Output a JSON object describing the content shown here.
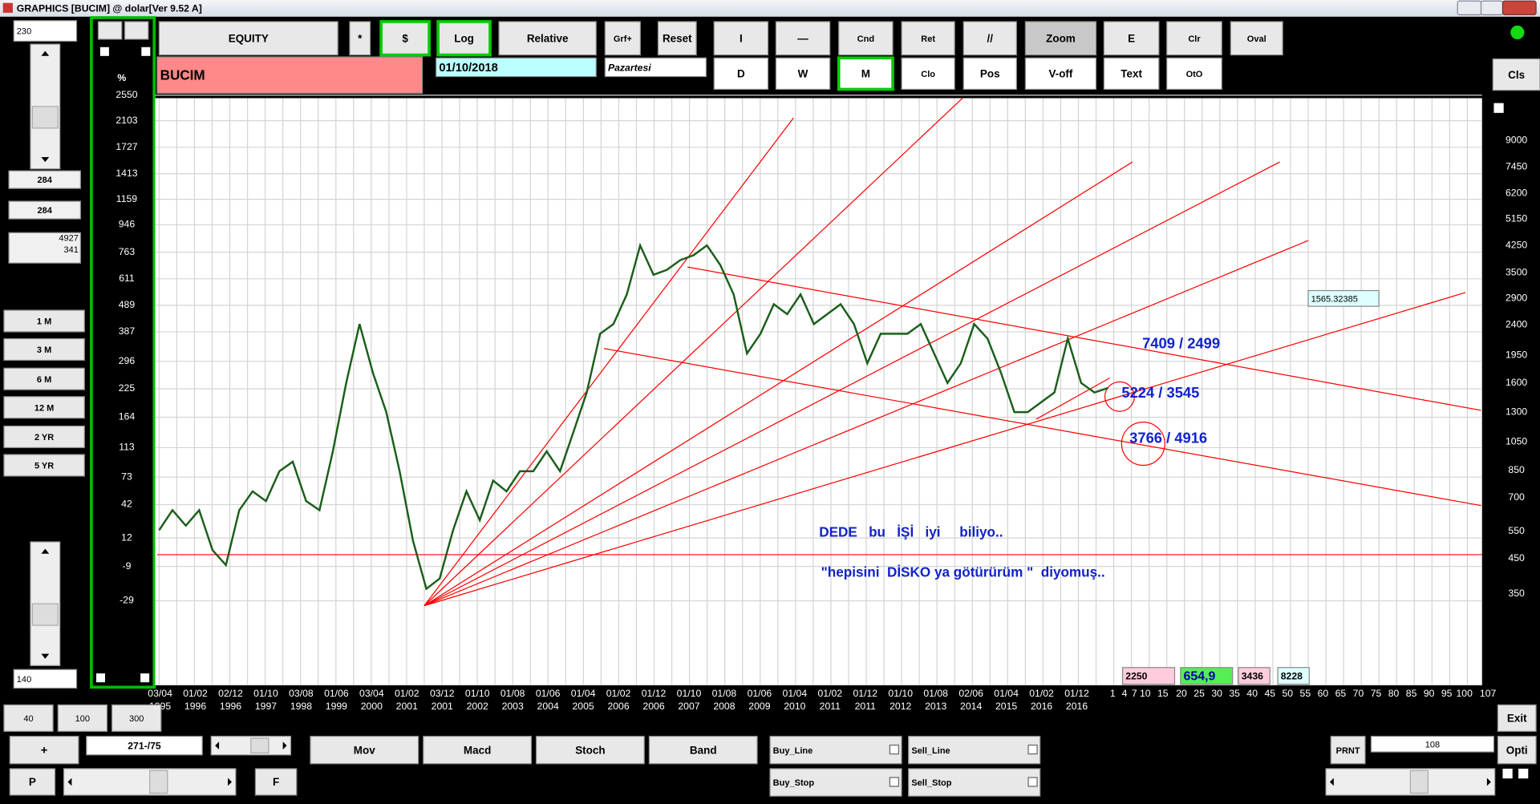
{
  "window": {
    "title": "GRAPHICS  [BUCIM] @ dolar[Ver 9.52 A]"
  },
  "toolbar": {
    "row1": [
      "EQUITY",
      "*",
      "$",
      "Log",
      "Relative",
      "Grf+",
      "Reset",
      "I",
      "—",
      "Cnd",
      "Ret",
      "//",
      "Zoom",
      "E",
      "Clr",
      "Oval"
    ],
    "row2": [
      "D",
      "W",
      "M",
      "Clo",
      "Pos",
      "V-off",
      "Text",
      "OtO"
    ],
    "symbol": "BUCIM",
    "date": "01/10/2018",
    "day": "Pazartesi",
    "cls": "Cls"
  },
  "left_panel": {
    "top": "230",
    "value1": "284",
    "value2": "284",
    "value3": [
      "4927",
      "341"
    ],
    "periods": [
      "1 M",
      "3 M",
      "6 M",
      "12 M",
      "2 YR",
      "5 YR"
    ],
    "bottom": "140"
  },
  "chart": {
    "left_unit": "%",
    "left_ticks": [
      2550,
      2103,
      1727,
      1413,
      1159,
      946,
      763,
      611,
      489,
      387,
      296,
      225,
      164,
      113,
      73,
      42,
      12,
      -9,
      -29
    ],
    "right_ticks": [
      9000,
      7450,
      6200,
      5150,
      4250,
      3500,
      2900,
      2400,
      1950,
      1600,
      1300,
      1050,
      850,
      700,
      550,
      450,
      350
    ],
    "x_labels": [
      [
        "03/04",
        "1995"
      ],
      [
        "01/02",
        "1996"
      ],
      [
        "02/12",
        "1996"
      ],
      [
        "01/10",
        "1997"
      ],
      [
        "03/08",
        "1998"
      ],
      [
        "01/06",
        "1999"
      ],
      [
        "03/04",
        "2000"
      ],
      [
        "01/02",
        "2001"
      ],
      [
        "03/12",
        "2001"
      ],
      [
        "01/10",
        "2002"
      ],
      [
        "01/08",
        "2003"
      ],
      [
        "01/06",
        "2004"
      ],
      [
        "01/04",
        "2005"
      ],
      [
        "01/02",
        "2006"
      ],
      [
        "01/12",
        "2006"
      ],
      [
        "01/10",
        "2007"
      ],
      [
        "01/08",
        "2008"
      ],
      [
        "01/06",
        "2009"
      ],
      [
        "01/04",
        "2010"
      ],
      [
        "01/02",
        "2011"
      ],
      [
        "01/12",
        "2011"
      ],
      [
        "01/10",
        "2012"
      ],
      [
        "01/08",
        "2013"
      ],
      [
        "02/06",
        "2014"
      ],
      [
        "01/04",
        "2015"
      ],
      [
        "01/02",
        "2016"
      ],
      [
        "01/12",
        "2016"
      ]
    ],
    "scale_labels": [
      "1",
      "4",
      "7",
      "10",
      "15",
      "20",
      "25",
      "30",
      "35",
      "40",
      "45",
      "50",
      "55",
      "60",
      "65",
      "70",
      "75",
      "80",
      "85",
      "90",
      "95",
      "100",
      "107"
    ],
    "price": [
      19,
      37,
      23,
      37,
      3,
      -8,
      37,
      57,
      46,
      81,
      94,
      46,
      37,
      108,
      240,
      417,
      266,
      175,
      81,
      10,
      -22,
      -16,
      19,
      57,
      28,
      69,
      57,
      81,
      81,
      108,
      81,
      139,
      217,
      381,
      417,
      539,
      809,
      634,
      662,
      718,
      746,
      809,
      690,
      539,
      320,
      381,
      494,
      455,
      539,
      417,
      455,
      494,
      417,
      291,
      381,
      381,
      381,
      417,
      320,
      240,
      291,
      417,
      366,
      266,
      175,
      175,
      196,
      217,
      366,
      240,
      217,
      227
    ],
    "value_box": "1565.32385",
    "annotations": [
      "7409 / 2499",
      "5224 / 3545",
      "3766 / 4916",
      "DEDE   bu   İŞİ   iyi     biliyo..",
      "\"hepisini  DİSKO ya götürürüm \"  diyomuş.."
    ],
    "boxes": [
      "2250",
      "654,9",
      "3436",
      "8228"
    ]
  },
  "bottom": {
    "zoom": [
      "40",
      "100",
      "300"
    ],
    "plus": "+",
    "counter": "271-/75",
    "p": "P",
    "f": "F",
    "indicators": [
      "Mov",
      "Macd",
      "Stoch",
      "Band"
    ],
    "orders": [
      "Buy_Line",
      "Sell_Line",
      "Buy_Stop",
      "Sell_Stop"
    ],
    "prnt": "PRNT",
    "prnt_value": "108",
    "exit": "Exit",
    "opti": "Opti"
  }
}
